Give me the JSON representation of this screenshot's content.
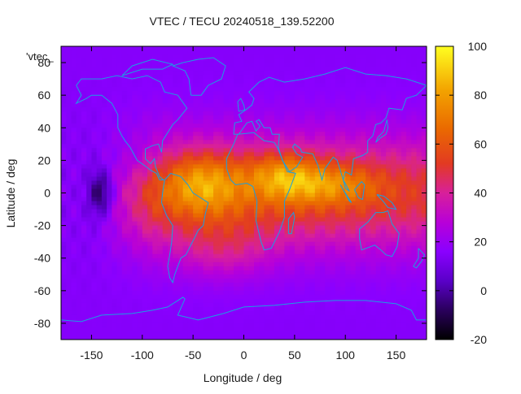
{
  "chart_data": {
    "type": "heatmap",
    "title": "VTEC / TECU 20240518_139.52200",
    "xlabel": "Longitude / deg",
    "ylabel": "Latitude / deg",
    "xlim": [
      -180,
      180
    ],
    "ylim": [
      -90,
      90
    ],
    "x_ticks": [
      -150,
      -100,
      -50,
      0,
      50,
      100,
      150
    ],
    "y_ticks": [
      -80,
      -60,
      -40,
      -20,
      0,
      20,
      40,
      60,
      80
    ],
    "x_tick_labels": [
      "-150",
      "-100",
      "-50",
      "0",
      "50",
      "100",
      "150"
    ],
    "y_tick_labels": [
      "-80",
      "-60",
      "-40",
      "-20",
      "0",
      "20",
      "40",
      "60",
      "80"
    ],
    "colorbar": {
      "range": [
        -20,
        100
      ],
      "ticks": [
        -20,
        0,
        20,
        40,
        60,
        80,
        100
      ],
      "tick_labels": [
        "-20",
        "0",
        "20",
        "40",
        "60",
        "80",
        "100"
      ]
    },
    "series_label": "'vtec_",
    "overlay": "coastlines",
    "coastline_color": "#1ba0e0",
    "features": [
      {
        "name": "equatorial-band",
        "lon_range": [
          -150,
          180
        ],
        "lat_range": [
          -40,
          40
        ],
        "peak_tecu": 95
      },
      {
        "name": "crest-south-america-atlantic",
        "lon": -40,
        "lat": 5,
        "tecu": 95
      },
      {
        "name": "crest-africa-east",
        "lon": 40,
        "lat": 10,
        "tecu": 90
      },
      {
        "name": "crest-indian-ocean",
        "lon": 80,
        "lat": 5,
        "tecu": 85
      },
      {
        "name": "minimum-east-pacific",
        "lon": -140,
        "lat": 0,
        "tecu": -8
      }
    ],
    "background_tecu": 15
  }
}
